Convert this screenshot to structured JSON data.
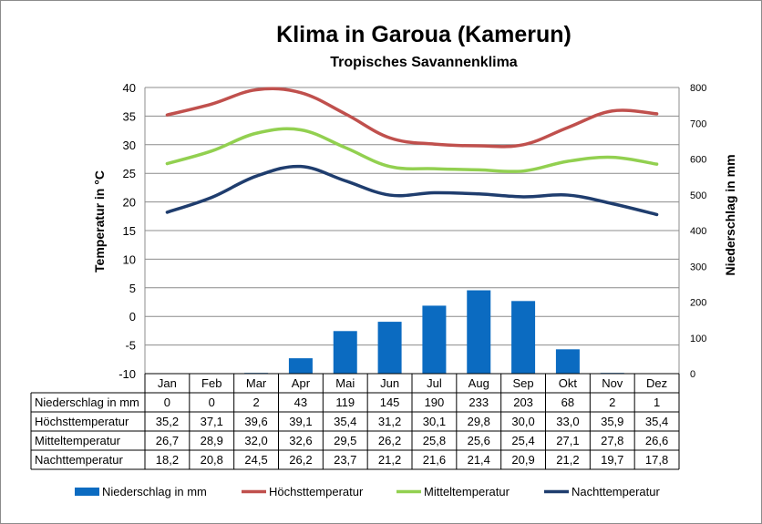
{
  "title": "Klima in Garoua (Kamerun)",
  "subtitle": "Tropisches Savannenklima",
  "colors": {
    "precip": "#0b6bc1",
    "high": "#c0504d",
    "mean": "#92d050",
    "night": "#1f3d6e"
  },
  "chart_data": {
    "type": "bar+line",
    "title": "Klima in Garoua (Kamerun)",
    "subtitle": "Tropisches Savannenklima",
    "categories": [
      "Jan",
      "Feb",
      "Mar",
      "Apr",
      "Mai",
      "Jun",
      "Jul",
      "Aug",
      "Sep",
      "Okt",
      "Nov",
      "Dez"
    ],
    "ylabel_left": "Temperatur in °C",
    "ylabel_right": "Niederschlag in mm",
    "ylim_left": [
      -10,
      40
    ],
    "yticks_left": [
      "40",
      "35",
      "30",
      "25",
      "20",
      "15",
      "10",
      "5",
      "0",
      "-5",
      "-10"
    ],
    "ylim_right": [
      0,
      800
    ],
    "yticks_right": [
      "800",
      "700",
      "600",
      "500",
      "400",
      "300",
      "200",
      "100",
      "0"
    ],
    "grid": true,
    "legend_position": "bottom",
    "series": [
      {
        "name": "Niederschlag in mm",
        "type": "bar",
        "axis": "right",
        "values": [
          0,
          0,
          2,
          43,
          119,
          145,
          190,
          233,
          203,
          68,
          2,
          1
        ],
        "labels": [
          "0",
          "0",
          "2",
          "43",
          "119",
          "145",
          "190",
          "233",
          "203",
          "68",
          "2",
          "1"
        ]
      },
      {
        "name": "Höchsttemperatur",
        "type": "line",
        "axis": "left",
        "values": [
          35.2,
          37.1,
          39.6,
          39.1,
          35.4,
          31.2,
          30.1,
          29.8,
          30.0,
          33.0,
          35.9,
          35.4
        ],
        "labels": [
          "35,2",
          "37,1",
          "39,6",
          "39,1",
          "35,4",
          "31,2",
          "30,1",
          "29,8",
          "30,0",
          "33,0",
          "35,9",
          "35,4"
        ]
      },
      {
        "name": "Mitteltemperatur",
        "type": "line",
        "axis": "left",
        "values": [
          26.7,
          28.9,
          32.0,
          32.6,
          29.5,
          26.2,
          25.8,
          25.6,
          25.4,
          27.1,
          27.8,
          26.6
        ],
        "labels": [
          "26,7",
          "28,9",
          "32,0",
          "32,6",
          "29,5",
          "26,2",
          "25,8",
          "25,6",
          "25,4",
          "27,1",
          "27,8",
          "26,6"
        ]
      },
      {
        "name": "Nachttemperatur",
        "type": "line",
        "axis": "left",
        "values": [
          18.2,
          20.8,
          24.5,
          26.2,
          23.7,
          21.2,
          21.6,
          21.4,
          20.9,
          21.2,
          19.7,
          17.8
        ],
        "labels": [
          "18,2",
          "20,8",
          "24,5",
          "26,2",
          "23,7",
          "21,2",
          "21,6",
          "21,4",
          "20,9",
          "21,2",
          "19,7",
          "17,8"
        ]
      }
    ]
  }
}
